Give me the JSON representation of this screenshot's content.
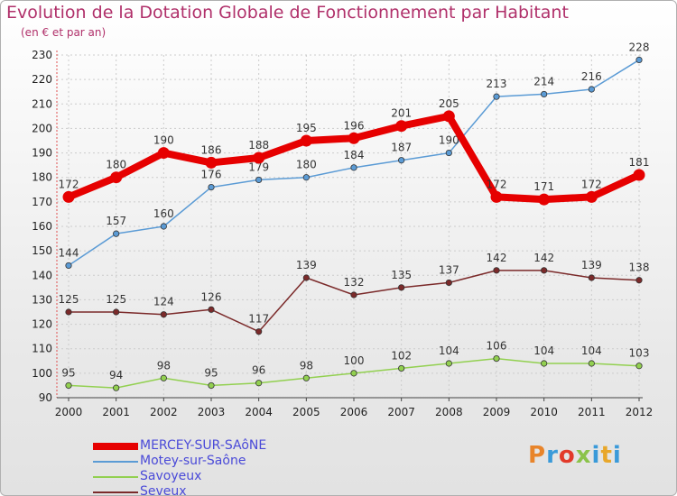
{
  "header": {
    "title": "Evolution de la Dotation Globale de Fonctionnement par Habitant",
    "subtitle": "(en € et par an)"
  },
  "logo": {
    "text": "Proxiti",
    "colors": [
      "#e8842a",
      "#3a9ad9",
      "#e23a2a",
      "#8bc34a",
      "#3a9ad9",
      "#e8a72a",
      "#3a9ad9"
    ]
  },
  "chart_data": {
    "type": "line",
    "title": "Evolution de la Dotation Globale de Fonctionnement par Habitant",
    "subtitle": "(en € et par an)",
    "xlabel": "",
    "ylabel": "",
    "x": [
      2000,
      2001,
      2002,
      2003,
      2004,
      2005,
      2006,
      2007,
      2008,
      2009,
      2010,
      2011,
      2012
    ],
    "ylim": [
      90,
      230
    ],
    "yticks": [
      90,
      100,
      110,
      120,
      130,
      140,
      150,
      160,
      170,
      180,
      190,
      200,
      210,
      220,
      230
    ],
    "grid": true,
    "legend_position": "bottom-left",
    "series": [
      {
        "name": "MERCEY-SUR-SAôNE",
        "color": "#e60000",
        "emphasis": true,
        "values": [
          172,
          180,
          190,
          186,
          188,
          195,
          196,
          201,
          205,
          172,
          171,
          172,
          181
        ]
      },
      {
        "name": "Motey-sur-Saône",
        "color": "#5b9bd5",
        "emphasis": false,
        "values": [
          144,
          157,
          160,
          176,
          179,
          180,
          184,
          187,
          190,
          213,
          214,
          216,
          228
        ]
      },
      {
        "name": "Savoyeux",
        "color": "#92d050",
        "emphasis": false,
        "values": [
          95,
          94,
          98,
          95,
          96,
          98,
          100,
          102,
          104,
          106,
          104,
          104,
          103
        ]
      },
      {
        "name": "Seveux",
        "color": "#7b2a2a",
        "emphasis": false,
        "values": [
          125,
          125,
          124,
          126,
          117,
          139,
          132,
          135,
          137,
          142,
          142,
          139,
          138
        ]
      }
    ]
  }
}
